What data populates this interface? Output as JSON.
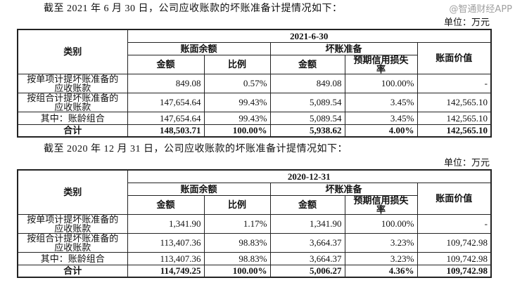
{
  "sections": [
    {
      "intro": "截至 2021 年 6 月 30 日，公司应收账款的坏账准备计提情况如下：",
      "unit": "单位：万元",
      "date": "2021-6-30",
      "rows": [
        {
          "cat": "按单项计提坏账准备的应收账款",
          "amt": "849.08",
          "ratio": "0.57%",
          "bad": "849.08",
          "rate": "100.00%",
          "book": "-"
        },
        {
          "cat": "按组合计提坏账准备的应收账款",
          "amt": "147,654.64",
          "ratio": "99.43%",
          "bad": "5,089.54",
          "rate": "3.45%",
          "book": "142,565.10"
        },
        {
          "cat": "其中：账龄组合",
          "amt": "147,654.64",
          "ratio": "99.43%",
          "bad": "5,089.54",
          "rate": "3.45%",
          "book": "142,565.10"
        },
        {
          "cat": "合计",
          "amt": "148,503.71",
          "ratio": "100.00%",
          "bad": "5,938.62",
          "rate": "4.00%",
          "book": "142,565.10"
        }
      ]
    },
    {
      "intro": "截至 2020 年 12 月 31 日，公司应收账款的坏账准备计提情况如下：",
      "unit": "单位：万元",
      "date": "2020-12-31",
      "rows": [
        {
          "cat": "按单项计提坏账准备的应收账款",
          "amt": "1,341.90",
          "ratio": "1.17%",
          "bad": "1,341.90",
          "rate": "100.00%",
          "book": "-"
        },
        {
          "cat": "按组合计提坏账准备的应收账款",
          "amt": "113,407.36",
          "ratio": "98.83%",
          "bad": "3,664.37",
          "rate": "3.23%",
          "book": "109,742.98"
        },
        {
          "cat": "其中：账龄组合",
          "amt": "113,407.36",
          "ratio": "98.83%",
          "bad": "3,664.37",
          "rate": "3.23%",
          "book": "109,742.98"
        },
        {
          "cat": "合计",
          "amt": "114,749.25",
          "ratio": "100.00%",
          "bad": "5,006.27",
          "rate": "4.36%",
          "book": "109,742.98"
        }
      ]
    }
  ],
  "headers": {
    "category": "类别",
    "book_balance": "账面余额",
    "bad_debt": "坏账准备",
    "book_value": "账面价值",
    "amount": "金额",
    "ratio": "比例",
    "ecl_rate": "预期信用损失率"
  },
  "watermark": "@智通财经APP"
}
